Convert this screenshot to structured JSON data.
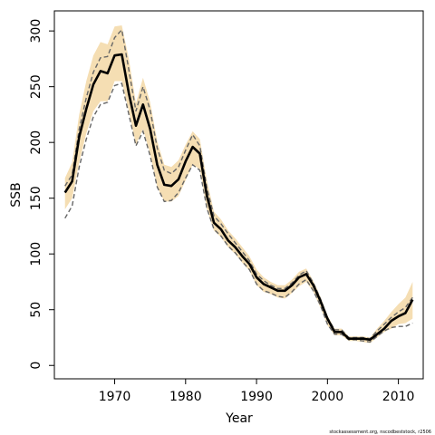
{
  "chart_data": {
    "type": "line",
    "title": "",
    "xlabel": "Year",
    "ylabel": "SSB",
    "xlim": [
      1961.5,
      2013.5
    ],
    "ylim": [
      -12,
      318
    ],
    "x_ticks": [
      1970,
      1980,
      1990,
      2000,
      2010
    ],
    "y_ticks": [
      0,
      50,
      100,
      150,
      200,
      250,
      300
    ],
    "grid": false,
    "legend": "none",
    "credit": "stockassessment.org, nscodbeststock, r2506",
    "colors": {
      "band": "#f5deb3",
      "estimate": "#000000",
      "dashed": "#666666",
      "axis": "#000000"
    },
    "x": [
      1963,
      1964,
      1965,
      1966,
      1967,
      1968,
      1969,
      1970,
      1971,
      1972,
      1973,
      1974,
      1975,
      1976,
      1977,
      1978,
      1979,
      1980,
      1981,
      1982,
      1983,
      1984,
      1985,
      1986,
      1987,
      1988,
      1989,
      1990,
      1991,
      1992,
      1993,
      1994,
      1995,
      1996,
      1997,
      1998,
      1999,
      2000,
      2001,
      2002,
      2003,
      2004,
      2005,
      2006,
      2007,
      2008,
      2009,
      2010,
      2011,
      2012
    ],
    "series": [
      {
        "name": "estimate",
        "style": "solid",
        "values": [
          155,
          165,
          205,
          230,
          252,
          264,
          262,
          278,
          279,
          244,
          215,
          234,
          212,
          180,
          162,
          161,
          167,
          183,
          196,
          190,
          152,
          128,
          122,
          112,
          106,
          98,
          91,
          79,
          73,
          70,
          67,
          67,
          72,
          79,
          82,
          72,
          58,
          42,
          30,
          30,
          24,
          24,
          24,
          23,
          28,
          33,
          40,
          44,
          47,
          59
        ]
      },
      {
        "name": "dashed-upper",
        "style": "dashed",
        "values": [
          161,
          171,
          212,
          240,
          263,
          276,
          277,
          294,
          301,
          265,
          228,
          250,
          229,
          195,
          175,
          172,
          178,
          193,
          207,
          197,
          159,
          134,
          127,
          118,
          110,
          102,
          94,
          82,
          76,
          72,
          69,
          69,
          74,
          81,
          85,
          74,
          60,
          43,
          32,
          32,
          25,
          25,
          25,
          24,
          31,
          37,
          43,
          48,
          52,
          61
        ]
      },
      {
        "name": "dashed-lower",
        "style": "dashed",
        "values": [
          132,
          143,
          178,
          203,
          223,
          234,
          236,
          251,
          253,
          225,
          197,
          210,
          188,
          160,
          147,
          148,
          155,
          168,
          180,
          175,
          141,
          122,
          116,
          107,
          101,
          93,
          86,
          73,
          67,
          65,
          62,
          61,
          66,
          73,
          77,
          67,
          54,
          37,
          28,
          28,
          23,
          23,
          22,
          21,
          26,
          31,
          34,
          35,
          35,
          38
        ]
      },
      {
        "name": "band-upper",
        "style": "fill",
        "values": [
          168,
          182,
          225,
          255,
          278,
          290,
          288,
          304,
          305,
          275,
          235,
          258,
          236,
          201,
          180,
          178,
          184,
          198,
          210,
          203,
          166,
          138,
          131,
          121,
          114,
          106,
          98,
          86,
          79,
          75,
          72,
          72,
          77,
          84,
          87,
          76,
          62,
          45,
          33,
          33,
          26,
          26,
          26,
          25,
          33,
          40,
          48,
          55,
          61,
          75
        ]
      },
      {
        "name": "band-lower",
        "style": "fill",
        "values": [
          140,
          150,
          182,
          208,
          228,
          237,
          237,
          255,
          255,
          228,
          198,
          212,
          190,
          160,
          147,
          147,
          152,
          166,
          180,
          176,
          140,
          121,
          115,
          106,
          100,
          92,
          85,
          72,
          66,
          64,
          61,
          60,
          65,
          71,
          75,
          66,
          52,
          36,
          27,
          27,
          22,
          22,
          21,
          20,
          25,
          30,
          33,
          37,
          38,
          42
        ]
      }
    ]
  }
}
